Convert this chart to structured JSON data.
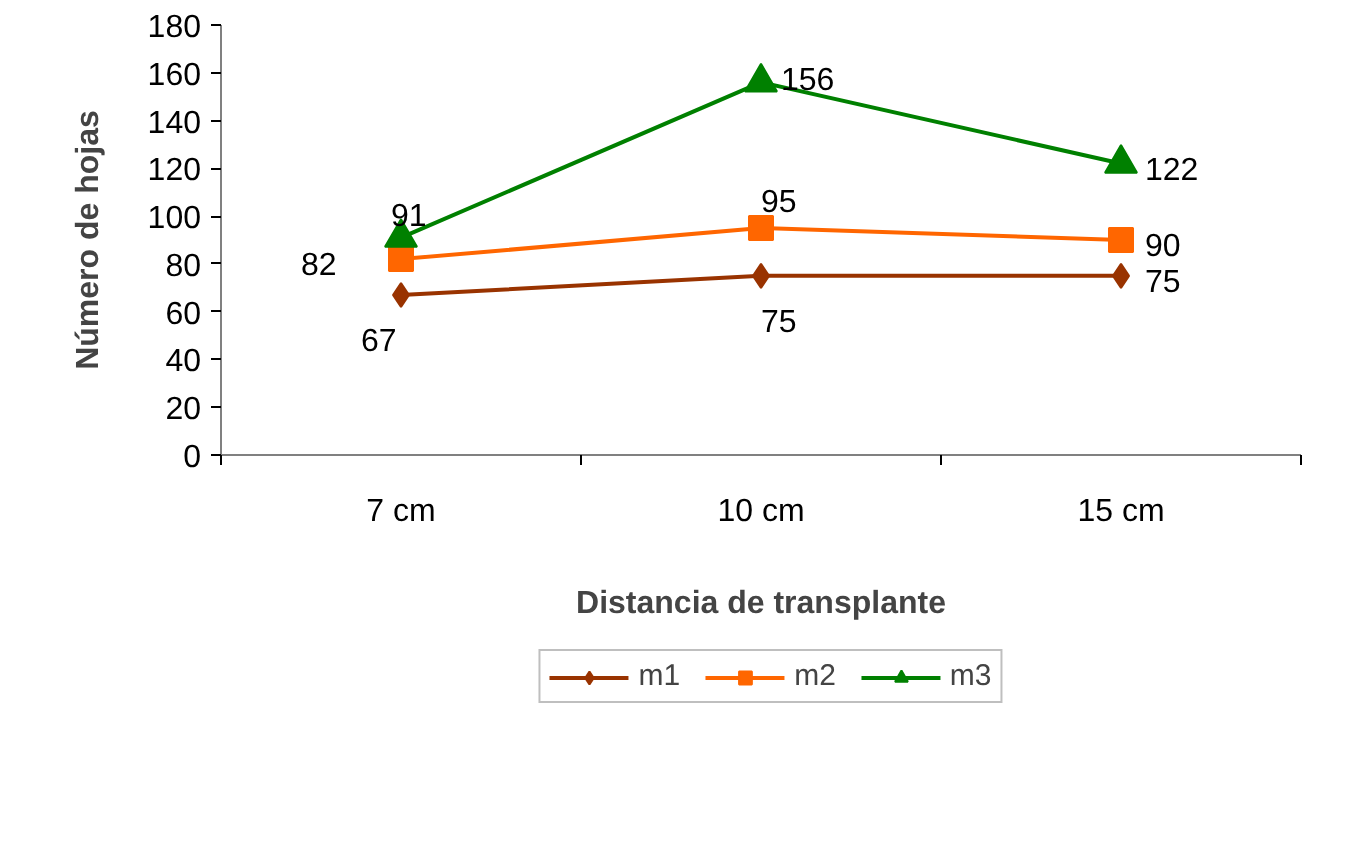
{
  "chart_data": {
    "type": "line",
    "xlabel": "Distancia de transplante",
    "ylabel": "Número de hojas",
    "categories": [
      "7 cm",
      "10 cm",
      "15 cm"
    ],
    "series": [
      {
        "name": "m1",
        "color": "#993300",
        "marker": "diamond",
        "values": [
          67,
          75,
          75
        ]
      },
      {
        "name": "m2",
        "color": "#ff6600",
        "marker": "square",
        "values": [
          82,
          95,
          90
        ]
      },
      {
        "name": "m3",
        "color": "#008000",
        "marker": "triangle",
        "values": [
          91,
          156,
          122
        ]
      }
    ],
    "ylim": [
      0,
      180
    ],
    "yticks": [
      0,
      20,
      40,
      60,
      80,
      100,
      120,
      140,
      160,
      180
    ],
    "grid": false,
    "legend": "bottom",
    "data_labels": true,
    "line_style": "solid"
  }
}
